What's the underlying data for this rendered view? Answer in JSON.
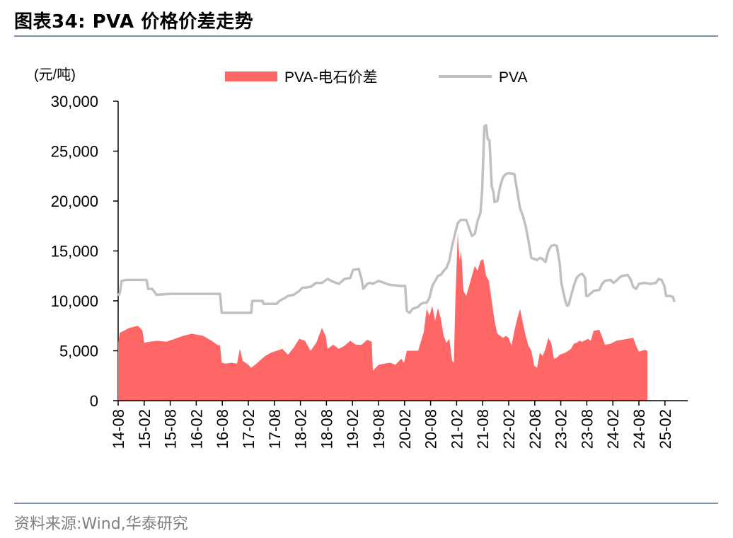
{
  "header": {
    "title": "图表34:   PVA 价格价差走势"
  },
  "footer": {
    "source": "资料来源:Wind,华泰研究"
  },
  "chart_data": {
    "type": "area",
    "unit_label": "(元/吨)",
    "ylim": [
      0,
      30000
    ],
    "yticks": [
      0,
      5000,
      10000,
      15000,
      20000,
      25000,
      30000
    ],
    "ytick_labels": [
      "0",
      "5,000",
      "10,000",
      "15,000",
      "20,000",
      "25,000",
      "30,000"
    ],
    "xtick_labels": [
      "14-08",
      "15-02",
      "15-08",
      "16-02",
      "16-08",
      "17-02",
      "17-08",
      "18-02",
      "18-08",
      "19-02",
      "19-08",
      "20-02",
      "20-08",
      "21-02",
      "21-08",
      "22-02",
      "22-08",
      "23-02",
      "23-08",
      "24-02",
      "24-08",
      "25-02"
    ],
    "legend_position": "top",
    "series": [
      {
        "name": "PVA-电石价差",
        "kind": "area",
        "color": "#ff6666",
        "points": [
          [
            0.0,
            5800
          ],
          [
            0.3,
            6800
          ],
          [
            1.0,
            7000
          ],
          [
            2.0,
            7300
          ],
          [
            3.5,
            7500
          ],
          [
            4.3,
            7000
          ],
          [
            4.6,
            5800
          ],
          [
            5.5,
            5900
          ],
          [
            7.0,
            6000
          ],
          [
            8.5,
            5900
          ],
          [
            10.0,
            6200
          ],
          [
            11.5,
            6500
          ],
          [
            13.0,
            6700
          ],
          [
            15.0,
            6500
          ],
          [
            16.5,
            6000
          ],
          [
            17.5,
            5600
          ],
          [
            18.0,
            5500
          ],
          [
            18.3,
            3800
          ],
          [
            19.0,
            3700
          ],
          [
            20.0,
            3800
          ],
          [
            21.0,
            3700
          ],
          [
            21.5,
            5200
          ],
          [
            22.0,
            4000
          ],
          [
            23.0,
            3600
          ],
          [
            23.5,
            3300
          ],
          [
            24.0,
            3500
          ],
          [
            25.0,
            4000
          ],
          [
            26.0,
            4500
          ],
          [
            27.0,
            4800
          ],
          [
            28.0,
            5000
          ],
          [
            29.0,
            5200
          ],
          [
            30.0,
            4600
          ],
          [
            31.0,
            5300
          ],
          [
            32.0,
            6200
          ],
          [
            33.0,
            6000
          ],
          [
            34.0,
            5000
          ],
          [
            35.0,
            5800
          ],
          [
            36.0,
            7300
          ],
          [
            36.7,
            6400
          ],
          [
            37.0,
            5200
          ],
          [
            38.0,
            5600
          ],
          [
            39.0,
            5200
          ],
          [
            40.0,
            5500
          ],
          [
            41.0,
            6000
          ],
          [
            42.0,
            5600
          ],
          [
            43.0,
            5600
          ],
          [
            44.0,
            6100
          ],
          [
            44.8,
            5900
          ],
          [
            45.0,
            3000
          ],
          [
            46.0,
            3600
          ],
          [
            47.0,
            3700
          ],
          [
            48.0,
            3800
          ],
          [
            49.0,
            3600
          ],
          [
            50.0,
            4200
          ],
          [
            50.5,
            3800
          ],
          [
            51.0,
            5000
          ],
          [
            52.0,
            5000
          ],
          [
            53.0,
            5000
          ],
          [
            54.0,
            6900
          ],
          [
            54.5,
            9200
          ],
          [
            55.0,
            8500
          ],
          [
            55.5,
            9500
          ],
          [
            56.0,
            8000
          ],
          [
            56.5,
            9300
          ],
          [
            57.0,
            8200
          ],
          [
            57.5,
            6500
          ],
          [
            58.0,
            5800
          ],
          [
            58.5,
            6200
          ],
          [
            59.0,
            4000
          ],
          [
            59.3,
            3800
          ],
          [
            59.6,
            10500
          ],
          [
            60.0,
            16900
          ],
          [
            60.3,
            14000
          ],
          [
            60.6,
            15000
          ],
          [
            61.0,
            11000
          ],
          [
            61.5,
            10500
          ],
          [
            62.0,
            11500
          ],
          [
            62.5,
            12500
          ],
          [
            63.0,
            13500
          ],
          [
            63.5,
            13000
          ],
          [
            64.0,
            14000
          ],
          [
            64.5,
            14200
          ],
          [
            65.0,
            12500
          ],
          [
            65.5,
            12000
          ],
          [
            66.0,
            10000
          ],
          [
            66.5,
            8000
          ],
          [
            67.0,
            6700
          ],
          [
            67.5,
            6500
          ],
          [
            68.0,
            6300
          ],
          [
            68.5,
            6500
          ],
          [
            69.0,
            6300
          ],
          [
            69.5,
            5500
          ],
          [
            70.0,
            7000
          ],
          [
            70.5,
            8200
          ],
          [
            71.0,
            9200
          ],
          [
            71.5,
            7800
          ],
          [
            72.0,
            6500
          ],
          [
            72.5,
            5500
          ],
          [
            73.0,
            5000
          ],
          [
            73.5,
            3500
          ],
          [
            74.0,
            3300
          ],
          [
            74.5,
            4800
          ],
          [
            75.0,
            4500
          ],
          [
            75.5,
            5200
          ],
          [
            76.0,
            6300
          ],
          [
            76.5,
            5800
          ],
          [
            77.0,
            4200
          ],
          [
            77.5,
            4300
          ],
          [
            78.0,
            4600
          ],
          [
            79.0,
            4800
          ],
          [
            80.0,
            5200
          ],
          [
            80.5,
            5700
          ],
          [
            81.0,
            5800
          ],
          [
            81.5,
            6000
          ],
          [
            82.0,
            5900
          ],
          [
            83.0,
            6200
          ],
          [
            83.5,
            6000
          ],
          [
            84.0,
            7000
          ],
          [
            85.0,
            7100
          ],
          [
            85.5,
            6400
          ],
          [
            86.0,
            5600
          ],
          [
            87.0,
            5700
          ],
          [
            88.0,
            6000
          ],
          [
            89.0,
            6100
          ],
          [
            90.0,
            6200
          ],
          [
            91.0,
            6300
          ],
          [
            91.5,
            5500
          ],
          [
            92.0,
            4900
          ],
          [
            93.0,
            5100
          ],
          [
            93.5,
            5000
          ]
        ]
      },
      {
        "name": "PVA",
        "kind": "line",
        "color": "#c0c0c0",
        "points": [
          [
            0.0,
            10500
          ],
          [
            0.3,
            10800
          ],
          [
            0.6,
            12000
          ],
          [
            1.5,
            12100
          ],
          [
            3.5,
            12100
          ],
          [
            5.0,
            12100
          ],
          [
            5.3,
            11200
          ],
          [
            6.0,
            11200
          ],
          [
            6.8,
            10600
          ],
          [
            9.0,
            10700
          ],
          [
            11.0,
            10700
          ],
          [
            13.0,
            10700
          ],
          [
            15.0,
            10700
          ],
          [
            17.5,
            10700
          ],
          [
            18.0,
            10700
          ],
          [
            18.3,
            8800
          ],
          [
            19.5,
            8800
          ],
          [
            21.0,
            8800
          ],
          [
            23.5,
            8800
          ],
          [
            23.7,
            10000
          ],
          [
            24.5,
            10000
          ],
          [
            25.5,
            10000
          ],
          [
            25.7,
            9700
          ],
          [
            26.5,
            9700
          ],
          [
            28.0,
            9700
          ],
          [
            28.5,
            10000
          ],
          [
            29.5,
            10300
          ],
          [
            30.0,
            10500
          ],
          [
            31.0,
            10600
          ],
          [
            32.0,
            11000
          ],
          [
            32.5,
            11300
          ],
          [
            34.0,
            11400
          ],
          [
            35.0,
            11800
          ],
          [
            36.0,
            11800
          ],
          [
            37.0,
            12200
          ],
          [
            38.0,
            11900
          ],
          [
            39.0,
            11700
          ],
          [
            40.0,
            12200
          ],
          [
            41.0,
            12300
          ],
          [
            41.5,
            13100
          ],
          [
            42.5,
            13200
          ],
          [
            43.0,
            12200
          ],
          [
            43.3,
            11200
          ],
          [
            44.0,
            11700
          ],
          [
            44.5,
            11800
          ],
          [
            45.0,
            11700
          ],
          [
            46.0,
            12000
          ],
          [
            47.0,
            11800
          ],
          [
            48.0,
            11600
          ],
          [
            50.0,
            11500
          ],
          [
            50.7,
            11500
          ],
          [
            51.0,
            9000
          ],
          [
            51.5,
            8800
          ],
          [
            52.0,
            9200
          ],
          [
            53.0,
            9400
          ],
          [
            53.5,
            9700
          ],
          [
            54.0,
            9800
          ],
          [
            54.5,
            9800
          ],
          [
            55.0,
            10300
          ],
          [
            55.5,
            11500
          ],
          [
            56.0,
            12000
          ],
          [
            56.5,
            12500
          ],
          [
            57.0,
            12600
          ],
          [
            57.5,
            13000
          ],
          [
            58.0,
            13300
          ],
          [
            58.5,
            14000
          ],
          [
            59.0,
            15500
          ],
          [
            59.5,
            16700
          ],
          [
            60.0,
            17800
          ],
          [
            60.5,
            18100
          ],
          [
            61.5,
            18100
          ],
          [
            62.0,
            17300
          ],
          [
            62.5,
            16500
          ],
          [
            63.0,
            16700
          ],
          [
            63.5,
            18000
          ],
          [
            64.0,
            18800
          ],
          [
            64.3,
            21000
          ],
          [
            64.7,
            27500
          ],
          [
            65.0,
            27600
          ],
          [
            65.3,
            26200
          ],
          [
            65.6,
            26100
          ],
          [
            66.0,
            21500
          ],
          [
            66.3,
            20900
          ],
          [
            66.5,
            19900
          ],
          [
            67.0,
            20000
          ],
          [
            67.5,
            21500
          ],
          [
            68.0,
            22400
          ],
          [
            68.5,
            22700
          ],
          [
            69.0,
            22800
          ],
          [
            70.0,
            22700
          ],
          [
            70.5,
            21000
          ],
          [
            71.0,
            19300
          ],
          [
            71.5,
            18500
          ],
          [
            72.0,
            17500
          ],
          [
            72.5,
            16000
          ],
          [
            73.0,
            14300
          ],
          [
            73.5,
            14200
          ],
          [
            74.0,
            14100
          ],
          [
            74.5,
            14300
          ],
          [
            75.0,
            14200
          ],
          [
            75.5,
            13900
          ],
          [
            76.0,
            15000
          ],
          [
            76.5,
            15500
          ],
          [
            77.0,
            15600
          ],
          [
            77.5,
            15500
          ],
          [
            78.0,
            13800
          ],
          [
            78.3,
            11800
          ],
          [
            78.6,
            11000
          ],
          [
            79.0,
            10000
          ],
          [
            79.3,
            9500
          ],
          [
            79.6,
            9600
          ],
          [
            80.0,
            10500
          ],
          [
            80.5,
            11500
          ],
          [
            81.0,
            12300
          ],
          [
            81.5,
            12600
          ],
          [
            82.0,
            12700
          ],
          [
            82.5,
            12300
          ],
          [
            82.7,
            10500
          ],
          [
            83.0,
            10500
          ],
          [
            84.0,
            11000
          ],
          [
            85.0,
            11100
          ],
          [
            85.5,
            11700
          ],
          [
            86.0,
            12000
          ],
          [
            87.0,
            12100
          ],
          [
            87.5,
            11800
          ],
          [
            88.0,
            12000
          ],
          [
            88.5,
            12300
          ],
          [
            89.0,
            12500
          ],
          [
            90.0,
            12600
          ],
          [
            90.5,
            12200
          ],
          [
            91.0,
            11400
          ],
          [
            91.5,
            11200
          ],
          [
            92.0,
            11700
          ],
          [
            93.0,
            11800
          ],
          [
            94.0,
            11700
          ],
          [
            95.0,
            11800
          ],
          [
            95.5,
            12200
          ],
          [
            96.0,
            12100
          ],
          [
            96.5,
            11500
          ],
          [
            96.8,
            10500
          ],
          [
            97.5,
            10500
          ],
          [
            98.0,
            10400
          ],
          [
            98.3,
            9900
          ]
        ]
      }
    ]
  }
}
